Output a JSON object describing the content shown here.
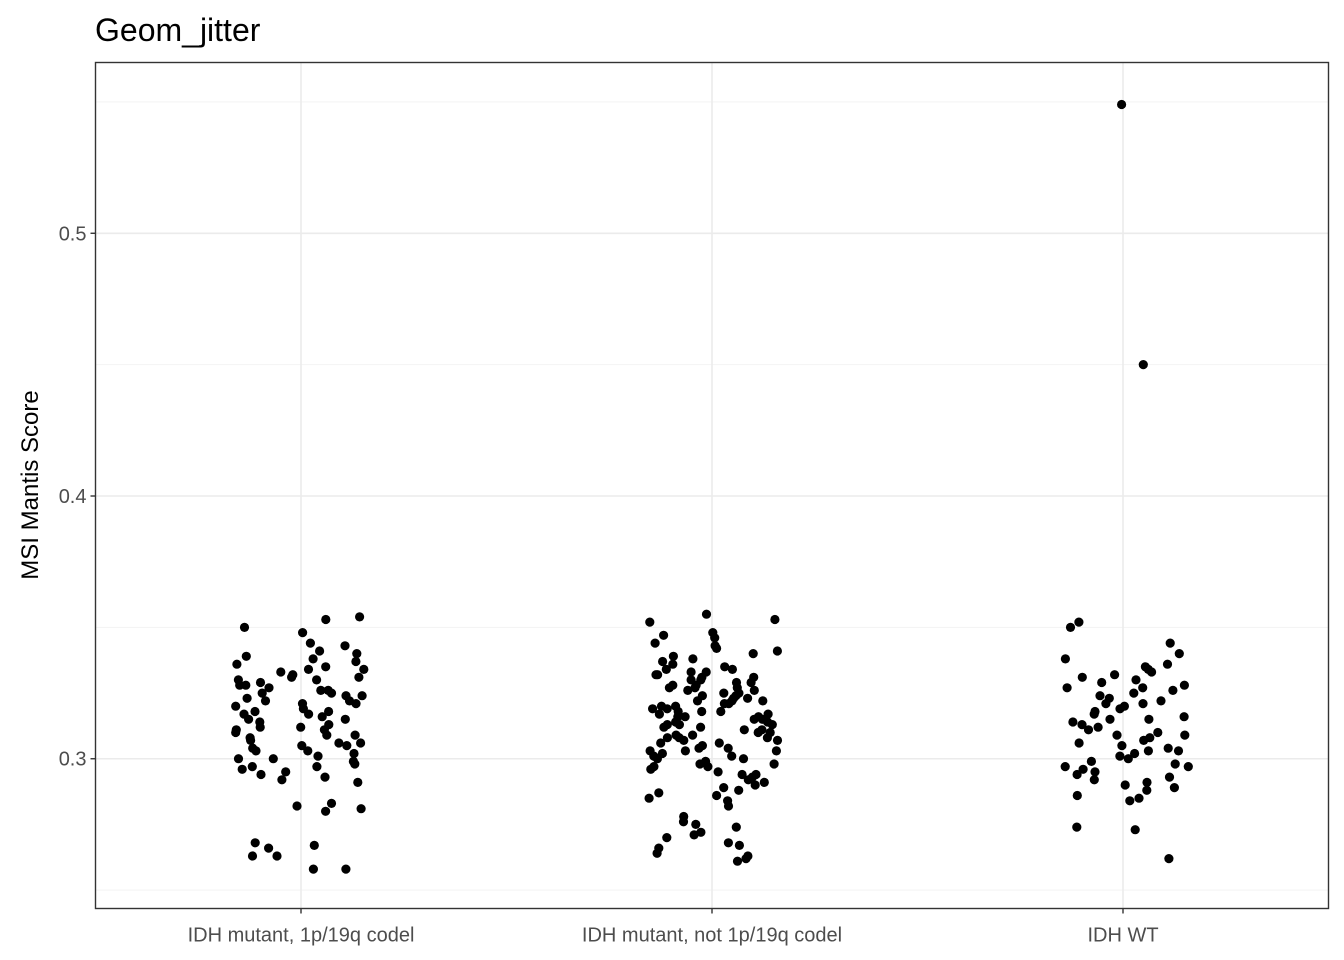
{
  "chart_data": {
    "type": "scatter",
    "title": "Geom_jitter",
    "xlabel": "",
    "ylabel": "MSI Mantis Score",
    "categories": [
      "IDH mutant,  1p/19q codel",
      "IDH mutant, not 1p/19q codel",
      "IDH WT"
    ],
    "ylim": [
      0.243,
      0.565
    ],
    "yticks": [
      0.3,
      0.4,
      0.5
    ],
    "ytick_labels": [
      "0.3",
      "0.4",
      "0.5"
    ],
    "grid": true,
    "legend": "none",
    "point_color": "#000000",
    "series": [
      {
        "category": "IDH mutant,  1p/19q codel",
        "values": [
          0.354,
          0.353,
          0.35,
          0.348,
          0.344,
          0.343,
          0.341,
          0.34,
          0.339,
          0.338,
          0.337,
          0.336,
          0.335,
          0.334,
          0.333,
          0.332,
          0.331,
          0.33,
          0.329,
          0.328,
          0.327,
          0.326,
          0.326,
          0.325,
          0.324,
          0.323,
          0.322,
          0.322,
          0.321,
          0.32,
          0.319,
          0.318,
          0.317,
          0.316,
          0.315,
          0.314,
          0.313,
          0.312,
          0.311,
          0.31,
          0.309,
          0.308,
          0.307,
          0.306,
          0.305,
          0.304,
          0.303,
          0.302,
          0.301,
          0.3,
          0.299,
          0.298,
          0.297,
          0.296,
          0.295,
          0.294,
          0.293,
          0.292,
          0.291,
          0.33,
          0.325,
          0.318,
          0.312,
          0.306,
          0.3,
          0.334,
          0.328,
          0.321,
          0.315,
          0.309,
          0.303,
          0.297,
          0.331,
          0.324,
          0.317,
          0.311,
          0.305,
          0.283,
          0.282,
          0.281,
          0.28,
          0.268,
          0.267,
          0.266,
          0.263,
          0.263,
          0.258,
          0.258
        ]
      },
      {
        "category": "IDH mutant, not 1p/19q codel",
        "values": [
          0.355,
          0.353,
          0.352,
          0.348,
          0.347,
          0.346,
          0.344,
          0.343,
          0.342,
          0.341,
          0.34,
          0.339,
          0.338,
          0.337,
          0.336,
          0.335,
          0.334,
          0.334,
          0.333,
          0.332,
          0.331,
          0.33,
          0.33,
          0.329,
          0.328,
          0.327,
          0.327,
          0.326,
          0.325,
          0.324,
          0.324,
          0.323,
          0.322,
          0.322,
          0.321,
          0.32,
          0.32,
          0.319,
          0.318,
          0.318,
          0.317,
          0.316,
          0.316,
          0.315,
          0.314,
          0.314,
          0.313,
          0.312,
          0.312,
          0.311,
          0.31,
          0.31,
          0.309,
          0.308,
          0.308,
          0.307,
          0.306,
          0.305,
          0.304,
          0.303,
          0.302,
          0.301,
          0.3,
          0.299,
          0.298,
          0.297,
          0.296,
          0.295,
          0.294,
          0.293,
          0.292,
          0.291,
          0.29,
          0.289,
          0.288,
          0.287,
          0.286,
          0.285,
          0.284,
          0.333,
          0.329,
          0.326,
          0.323,
          0.319,
          0.316,
          0.313,
          0.309,
          0.306,
          0.303,
          0.3,
          0.331,
          0.328,
          0.325,
          0.321,
          0.318,
          0.315,
          0.311,
          0.307,
          0.304,
          0.301,
          0.297,
          0.332,
          0.327,
          0.322,
          0.317,
          0.313,
          0.308,
          0.303,
          0.298,
          0.294,
          0.282,
          0.278,
          0.276,
          0.275,
          0.274,
          0.272,
          0.271,
          0.27,
          0.268,
          0.267,
          0.266,
          0.264,
          0.263,
          0.262,
          0.261
        ]
      },
      {
        "category": "IDH WT",
        "values": [
          0.549,
          0.45,
          0.352,
          0.35,
          0.344,
          0.34,
          0.338,
          0.336,
          0.335,
          0.334,
          0.333,
          0.332,
          0.331,
          0.33,
          0.329,
          0.328,
          0.327,
          0.326,
          0.325,
          0.324,
          0.323,
          0.322,
          0.321,
          0.32,
          0.319,
          0.318,
          0.317,
          0.316,
          0.315,
          0.314,
          0.313,
          0.312,
          0.311,
          0.31,
          0.309,
          0.308,
          0.307,
          0.306,
          0.305,
          0.304,
          0.303,
          0.302,
          0.301,
          0.3,
          0.299,
          0.298,
          0.297,
          0.296,
          0.295,
          0.294,
          0.293,
          0.292,
          0.291,
          0.29,
          0.289,
          0.288,
          0.286,
          0.285,
          0.284,
          0.327,
          0.321,
          0.315,
          0.309,
          0.303,
          0.297,
          0.274,
          0.273,
          0.262
        ]
      }
    ]
  }
}
